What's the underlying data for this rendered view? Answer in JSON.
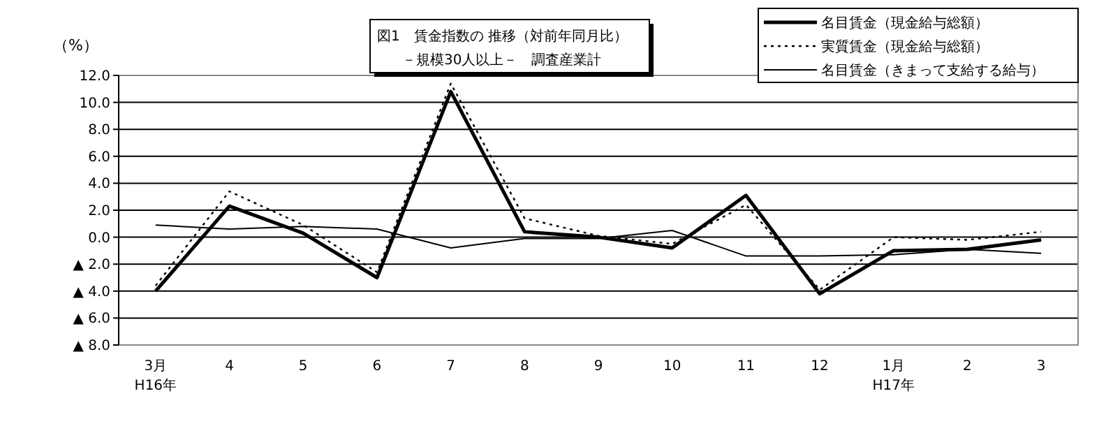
{
  "chart_data": {
    "type": "line",
    "title": "図1　賃金指数の 推移（対前年同月比）",
    "subtitle": "－規模30人以上－　調査産業計",
    "ylabel": "（%）",
    "categories": [
      "3月\nH16年",
      "4",
      "5",
      "6",
      "7",
      "8",
      "9",
      "10",
      "11",
      "12",
      "1月\nH17年",
      "2",
      "3"
    ],
    "series": [
      {
        "name": "名目賃金（現金給与総額）",
        "color": "#000000",
        "line_style": "solid",
        "values": [
          -4.0,
          2.3,
          0.3,
          -3.0,
          10.8,
          0.4,
          0.0,
          -0.8,
          3.1,
          -4.2,
          -1.0,
          -0.9,
          -0.2
        ]
      },
      {
        "name": "実質賃金（現金給与総額）",
        "color": "#000000",
        "line_style": "dotted",
        "values": [
          -3.6,
          3.4,
          0.9,
          -2.6,
          11.4,
          1.4,
          0.1,
          -0.5,
          2.4,
          -3.9,
          0.0,
          -0.2,
          0.4
        ]
      },
      {
        "name": "名目賃金（きまって支給する給与）",
        "color": "#000000",
        "line_style": "solid",
        "values": [
          0.9,
          0.6,
          0.8,
          0.6,
          -0.8,
          -0.1,
          -0.1,
          0.5,
          -1.4,
          -1.4,
          -1.3,
          -0.9,
          -1.2
        ]
      }
    ],
    "ylim": [
      -8,
      12
    ],
    "yticks": [
      {
        "value": 12,
        "label": "12.0"
      },
      {
        "value": 10,
        "label": "10.0"
      },
      {
        "value": 8,
        "label": "8.0"
      },
      {
        "value": 6,
        "label": "6.0"
      },
      {
        "value": 4,
        "label": "4.0"
      },
      {
        "value": 2,
        "label": "2.0"
      },
      {
        "value": 0,
        "label": "0.0"
      },
      {
        "value": -2,
        "label": "▲ 2.0"
      },
      {
        "value": -4,
        "label": "▲ 4.0"
      },
      {
        "value": -6,
        "label": "▲ 6.0"
      },
      {
        "value": -8,
        "label": "▲ 8.0"
      }
    ],
    "grid": "y",
    "legend": "top right"
  }
}
